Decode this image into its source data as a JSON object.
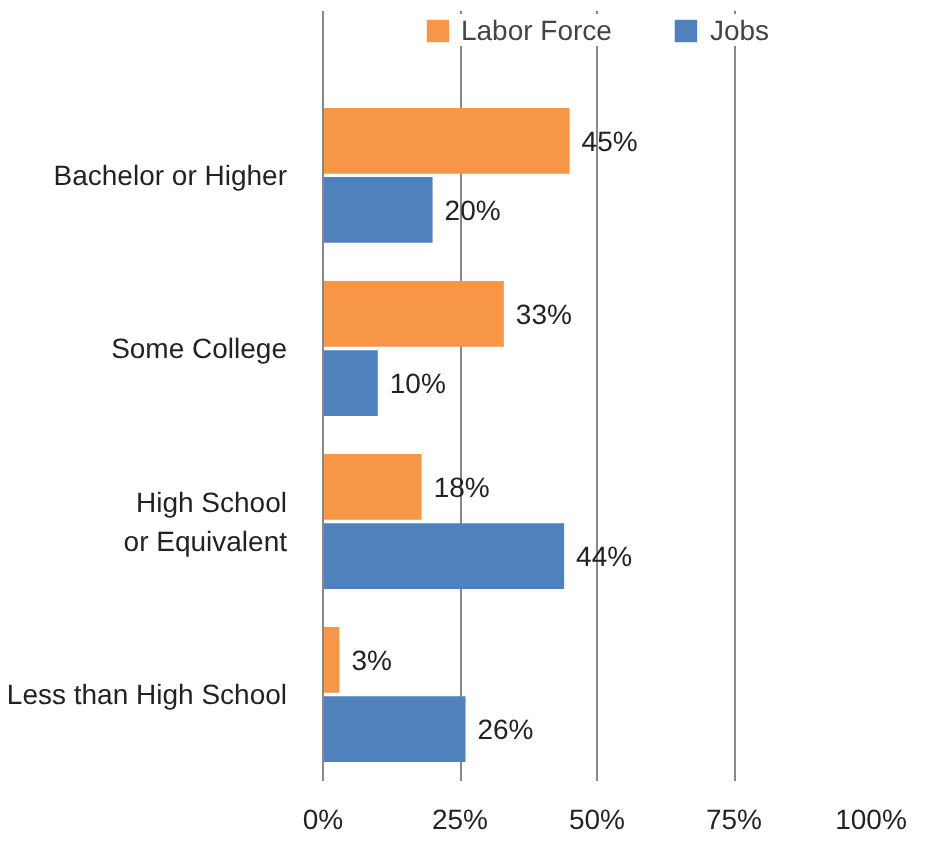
{
  "chart_data": {
    "type": "bar",
    "orientation": "horizontal",
    "categories": [
      "Bachelor or Higher",
      "Some College",
      "High School or Equivalent",
      "Less than High School"
    ],
    "series": [
      {
        "name": "Labor Force",
        "color": "#f79646",
        "values": [
          45,
          33,
          18,
          3
        ],
        "value_labels": [
          "45%",
          "33%",
          "18%",
          "3%"
        ]
      },
      {
        "name": "Jobs",
        "color": "#4f81bd",
        "values": [
          20,
          10,
          44,
          26
        ],
        "value_labels": [
          "20%",
          "10%",
          "44%",
          "26%"
        ]
      }
    ],
    "xlim": [
      0,
      100
    ],
    "xticks": [
      {
        "value": 0,
        "label": "0%"
      },
      {
        "value": 25,
        "label": "25%"
      },
      {
        "value": 50,
        "label": "50%"
      },
      {
        "value": 75,
        "label": "75%"
      },
      {
        "value": 100,
        "label": "100%"
      }
    ],
    "grid": "x",
    "legend": "top"
  }
}
